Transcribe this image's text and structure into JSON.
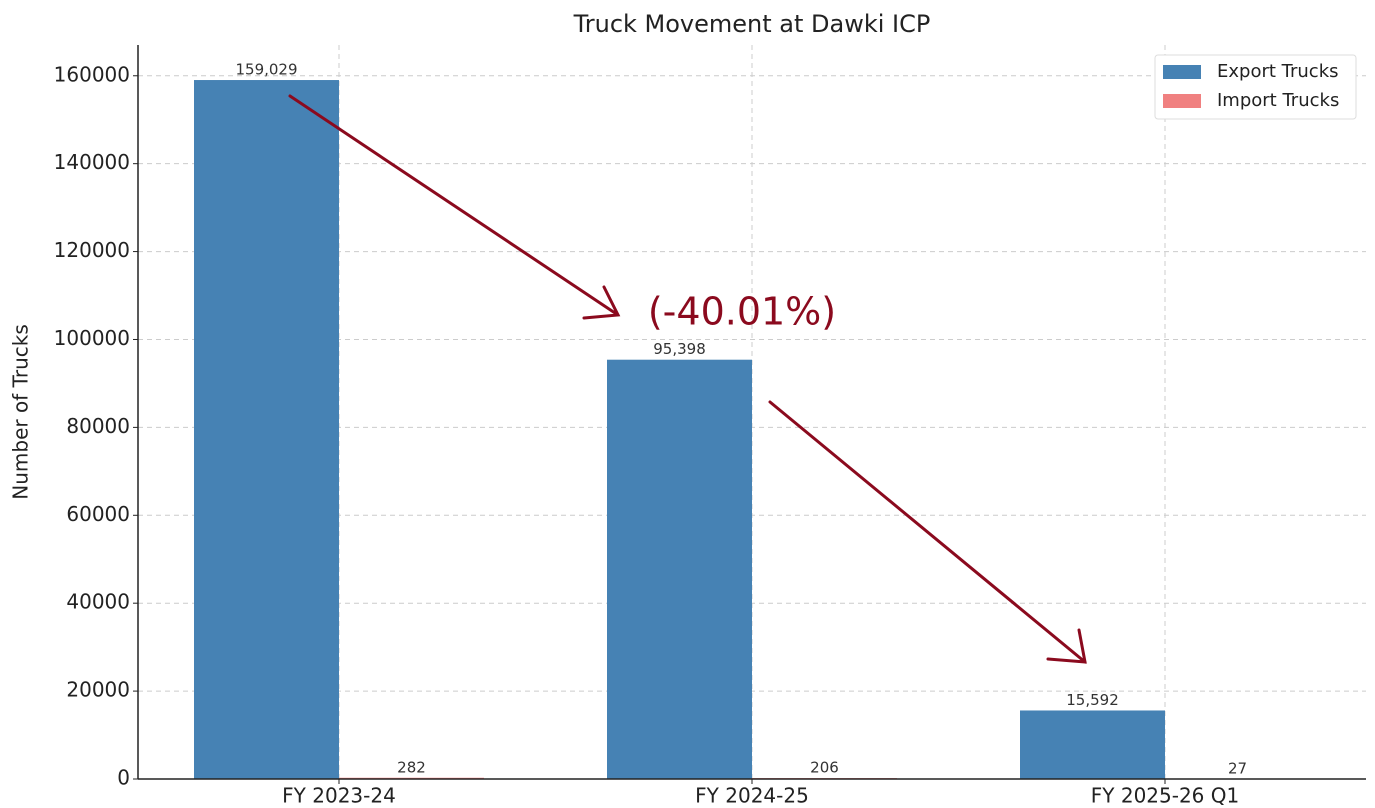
{
  "chart_data": {
    "type": "bar",
    "title": "Truck Movement at Dawki ICP",
    "y_label": "Number of Trucks",
    "categories": [
      "FY 2023-24",
      "FY 2024-25",
      "FY 2025-26 Q1"
    ],
    "series": [
      {
        "name": "Export Trucks",
        "color": "#4682b4",
        "values": [
          159029,
          95398,
          15592
        ],
        "value_labels": [
          "159,029",
          "95,398",
          "15,592"
        ]
      },
      {
        "name": "Import Trucks",
        "color": "#f08080",
        "values": [
          282,
          206,
          27
        ]
      }
    ],
    "ylim": [
      0,
      167000
    ],
    "yticks": [
      0,
      20000,
      40000,
      60000,
      80000,
      100000,
      120000,
      140000,
      160000
    ],
    "grid": true,
    "legend": "upper right",
    "annotations": [
      {
        "text": "(-40.01%)",
        "color": "#8b0a1e"
      }
    ]
  }
}
